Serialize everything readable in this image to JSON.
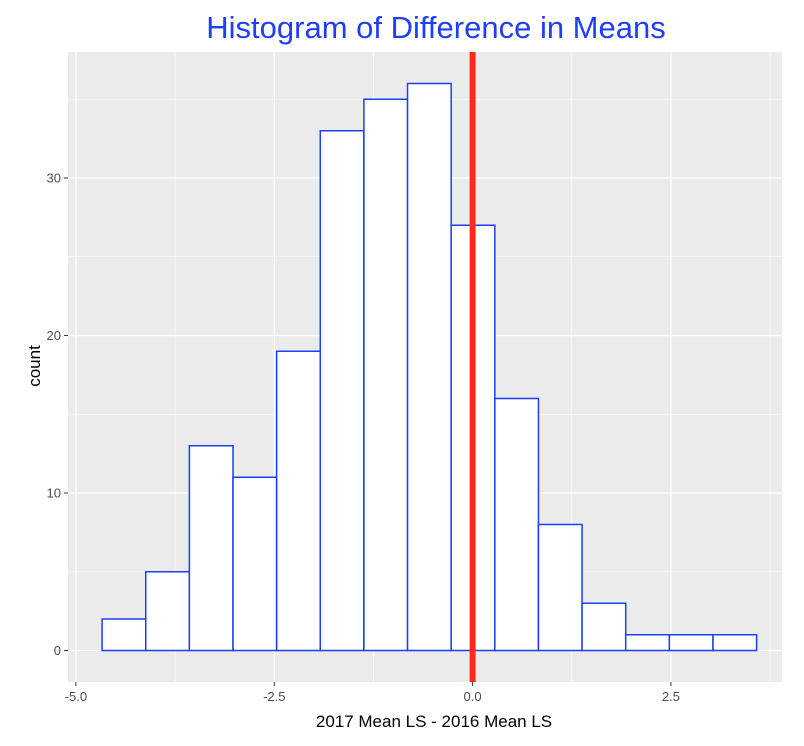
{
  "chart_data": {
    "type": "bar",
    "title": "Histogram of Difference in Means",
    "xlabel": "2017 Mean LS - 2016 Mean LS",
    "ylabel": "count",
    "bin_width": 0.55,
    "bins": [
      {
        "x0": -4.67,
        "x1": -4.12,
        "count": 2
      },
      {
        "x0": -4.12,
        "x1": -3.57,
        "count": 5
      },
      {
        "x0": -3.57,
        "x1": -3.02,
        "count": 13
      },
      {
        "x0": -3.02,
        "x1": -2.47,
        "count": 11
      },
      {
        "x0": -2.47,
        "x1": -1.92,
        "count": 19
      },
      {
        "x0": -1.92,
        "x1": -1.37,
        "count": 33
      },
      {
        "x0": -1.37,
        "x1": -0.82,
        "count": 35
      },
      {
        "x0": -0.82,
        "x1": -0.27,
        "count": 36
      },
      {
        "x0": -0.27,
        "x1": 0.28,
        "count": 27
      },
      {
        "x0": 0.28,
        "x1": 0.83,
        "count": 16
      },
      {
        "x0": 0.83,
        "x1": 1.38,
        "count": 8
      },
      {
        "x0": 1.38,
        "x1": 1.93,
        "count": 3
      },
      {
        "x0": 1.93,
        "x1": 2.48,
        "count": 1
      },
      {
        "x0": 2.48,
        "x1": 3.03,
        "count": 1
      },
      {
        "x0": 3.03,
        "x1": 3.58,
        "count": 1
      }
    ],
    "reference_line": {
      "x": 0.0,
      "color": "#ff2a1a"
    },
    "xlim": [
      -5.1,
      3.9
    ],
    "ylim": [
      -2,
      38
    ],
    "x_ticks": [
      {
        "value": -5.0,
        "label": "-5.0"
      },
      {
        "value": -2.5,
        "label": "-2.5"
      },
      {
        "value": 0.0,
        "label": "0.0"
      },
      {
        "value": 2.5,
        "label": "2.5"
      }
    ],
    "y_ticks": [
      {
        "value": 0,
        "label": "0"
      },
      {
        "value": 10,
        "label": "10"
      },
      {
        "value": 20,
        "label": "20"
      },
      {
        "value": 30,
        "label": "30"
      }
    ],
    "grid": true,
    "colors": {
      "title": "#1f3dff",
      "bar_fill": "#ffffff",
      "bar_stroke": "#1f3dff",
      "panel_bg": "#ebebeb",
      "grid_major": "#ffffff"
    }
  }
}
